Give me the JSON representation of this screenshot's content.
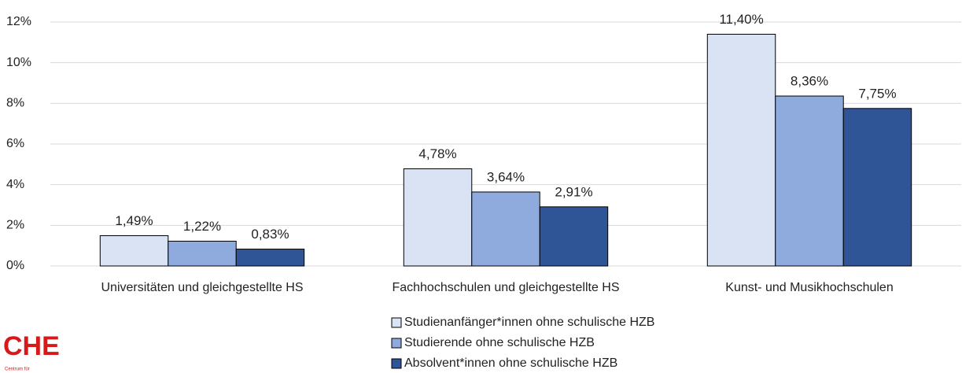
{
  "chart_data": {
    "type": "bar",
    "categories": [
      "Universitäten und gleichgestellte HS",
      "Fachhochschulen und gleichgestellte HS",
      "Kunst- und Musikhochschulen"
    ],
    "series": [
      {
        "name": "Studienanfänger*innen ohne schulische HZB",
        "color": "#dae3f3",
        "values": [
          1.49,
          4.78,
          11.4
        ],
        "value_labels": [
          "1,49%",
          "4,78%",
          "11,40%"
        ]
      },
      {
        "name": "Studierende ohne schulische HZB",
        "color": "#8faadc",
        "values": [
          1.22,
          3.64,
          8.36
        ],
        "value_labels": [
          "1,22%",
          "3,64%",
          "8,36%"
        ]
      },
      {
        "name": "Absolvent*innen ohne schulische HZB",
        "color": "#2f5597",
        "values": [
          0.83,
          2.91,
          7.75
        ],
        "value_labels": [
          "0,83%",
          "2,91%",
          "7,75%"
        ]
      }
    ],
    "ylim": [
      0,
      12
    ],
    "yticks": [
      {
        "value": 0,
        "label": "0%"
      },
      {
        "value": 2,
        "label": "2%"
      },
      {
        "value": 4,
        "label": "4%"
      },
      {
        "value": 6,
        "label": "6%"
      },
      {
        "value": 8,
        "label": "8%"
      },
      {
        "value": 10,
        "label": "10%"
      },
      {
        "value": 12,
        "label": "12%"
      }
    ],
    "grid": true,
    "legend": "bottom"
  },
  "logo": {
    "text": "CHE",
    "subtext": "Centrum für"
  }
}
